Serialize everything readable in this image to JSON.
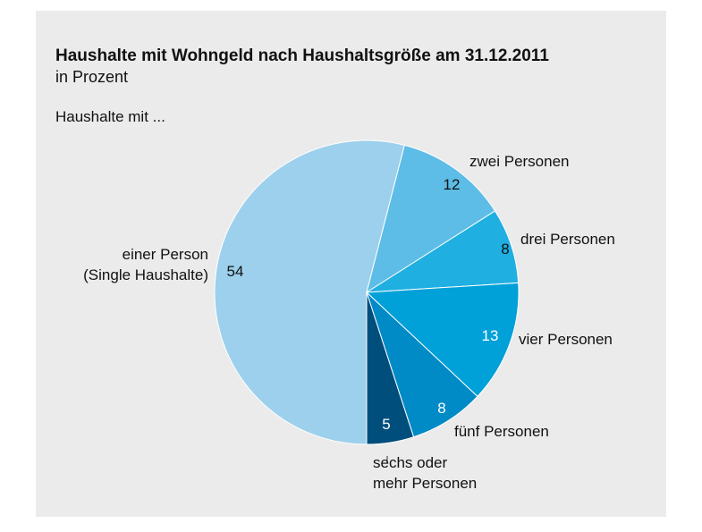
{
  "chart_data": {
    "type": "pie",
    "title": "Haushalte mit Wohngeld nach Haushaltsgröße am 31.12.2011",
    "subtitle": "in Prozent",
    "annotation": "Haushalte mit ...",
    "categories": [
      "einer Person\n(Single Haushalte)",
      "zwei Personen",
      "drei Personen",
      "vier Personen",
      "fünf Personen",
      "sechs oder\nmehr Personen"
    ],
    "values": [
      54,
      12,
      8,
      13,
      8,
      5
    ],
    "colors": [
      "#9dd0ec",
      "#5dbde6",
      "#1fafe1",
      "#00a0d8",
      "#008bc7",
      "#004e7c"
    ]
  }
}
